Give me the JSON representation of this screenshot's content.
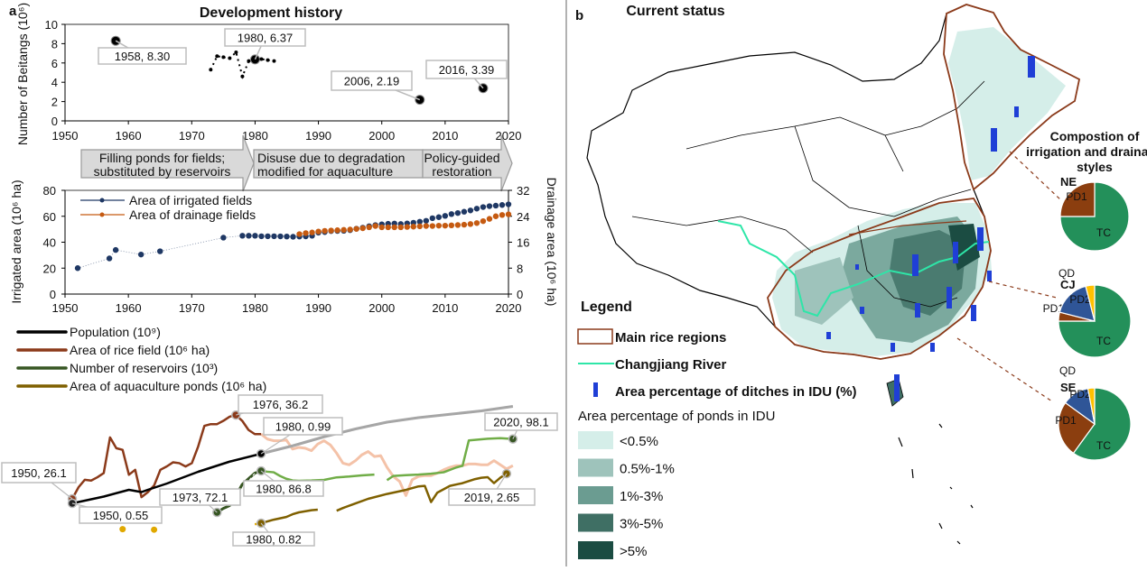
{
  "panel_a": {
    "label": "a",
    "title": "Development history",
    "phases": [
      {
        "line1": "Filling ponds for fields;",
        "line2": "substituted by reservoirs"
      },
      {
        "line1": "Disuse due to degradation",
        "line2": "modified for aquaculture"
      },
      {
        "line1": "Policy-guided",
        "line2": "restoration"
      }
    ]
  },
  "panel_b": {
    "label": "b",
    "title": "Current status",
    "legend": {
      "title": "Legend",
      "rice_regions": "Main rice regions",
      "river": "Changjiang  River",
      "ditches": "Area percentage of ditches in IDU (%)",
      "ponds_title": "Area percentage of ponds in IDU",
      "ponds_classes": [
        {
          "label": "<0.5%",
          "color": "#d5eee9"
        },
        {
          "label": "0.5%-1%",
          "color": "#9ec3bb"
        },
        {
          "label": "1%-3%",
          "color": "#6b9c91"
        },
        {
          "label": "3%-5%",
          "color": "#3f6f64"
        },
        {
          "label": ">5%",
          "color": "#1b4c42"
        }
      ]
    },
    "colors": {
      "rice_region": "#8b3a1a",
      "river": "#2ee6a8",
      "ditch": "#1f3fd6"
    }
  },
  "chart_data": [
    {
      "type": "scatter",
      "title": "Development history",
      "ylabel": "Number of Beitangs (10⁶)",
      "xlim": [
        1950,
        2020
      ],
      "ylim": [
        0,
        10
      ],
      "xticks": [
        "1950",
        "1960",
        "1970",
        "1980",
        "1990",
        "2000",
        "2010",
        "2020"
      ],
      "yticks": [
        "0",
        "2",
        "4",
        "6",
        "8",
        "10"
      ],
      "points": [
        {
          "x": 1958,
          "y": 8.3
        },
        {
          "x": 1973,
          "y": 5.3
        },
        {
          "x": 1974,
          "y": 6.7
        },
        {
          "x": 1975,
          "y": 6.6
        },
        {
          "x": 1976,
          "y": 6.5
        },
        {
          "x": 1977,
          "y": 7.1
        },
        {
          "x": 1978,
          "y": 4.6
        },
        {
          "x": 1979,
          "y": 6.2
        },
        {
          "x": 1980,
          "y": 6.37
        },
        {
          "x": 1981,
          "y": 6.4
        },
        {
          "x": 1982,
          "y": 6.3
        },
        {
          "x": 1983,
          "y": 6.2
        },
        {
          "x": 2006,
          "y": 2.19
        },
        {
          "x": 2016,
          "y": 3.39
        }
      ],
      "annotations": [
        "1958, 8.30",
        "1980, 6.37",
        "2006, 2.19",
        "2016, 3.39"
      ]
    },
    {
      "type": "line",
      "ylabel": "Irrigated area (10⁶ ha)",
      "y2label": "Drainage area (10⁶ ha)",
      "xlim": [
        1950,
        2020
      ],
      "ylim": [
        0,
        80
      ],
      "y2lim": [
        0,
        32
      ],
      "xticks": [
        "1950",
        "1960",
        "1970",
        "1980",
        "1990",
        "2000",
        "2010",
        "2020"
      ],
      "yticks": [
        "0",
        "20",
        "40",
        "60",
        "80"
      ],
      "y2ticks": [
        "0",
        "8",
        "16",
        "24",
        "32"
      ],
      "legend_position": "top-left",
      "series": [
        {
          "name": "Area of irrigated fields",
          "color": "#1f3864",
          "axis": "left",
          "x": [
            1952,
            1957,
            1958,
            1962,
            1965,
            1975,
            1978,
            1979,
            1980,
            1981,
            1982,
            1983,
            1984,
            1985,
            1986,
            1987,
            1988,
            1989,
            1990,
            1991,
            1992,
            1993,
            1994,
            1995,
            1996,
            1997,
            1998,
            1999,
            2000,
            2001,
            2002,
            2003,
            2004,
            2005,
            2006,
            2007,
            2008,
            2009,
            2010,
            2011,
            2012,
            2013,
            2014,
            2015,
            2016,
            2017,
            2018,
            2019,
            2020
          ],
          "y": [
            20,
            27.5,
            34,
            30.5,
            33,
            43.5,
            45,
            45,
            45,
            44.6,
            44.6,
            44.6,
            44.5,
            44.4,
            44.2,
            44.4,
            44.5,
            45,
            47.4,
            47.8,
            48.6,
            48.7,
            48.8,
            49.3,
            50.4,
            51.2,
            52.3,
            53.2,
            53.8,
            54.2,
            54.4,
            54.0,
            54.5,
            55.0,
            55.8,
            56.5,
            58.5,
            59.3,
            60.3,
            61.7,
            62.5,
            63.5,
            64.5,
            65.9,
            67.1,
            67.8,
            68.2,
            68.7,
            69.2
          ]
        },
        {
          "name": "Area of drainage fields",
          "color": "#c55a11",
          "axis": "right",
          "x": [
            1987,
            1988,
            1989,
            1990,
            1991,
            1992,
            1993,
            1994,
            1995,
            1996,
            1997,
            1998,
            1999,
            2000,
            2001,
            2002,
            2003,
            2004,
            2005,
            2006,
            2007,
            2008,
            2009,
            2010,
            2011,
            2012,
            2013,
            2014,
            2015,
            2016,
            2017,
            2018,
            2019,
            2020
          ],
          "y": [
            18.5,
            18.8,
            19.0,
            19.3,
            19.5,
            19.6,
            19.7,
            19.8,
            19.9,
            20.1,
            20.3,
            20.6,
            21.0,
            20.6,
            20.6,
            20.6,
            20.6,
            20.7,
            20.8,
            20.9,
            21.0,
            21.0,
            21.1,
            21.1,
            21.2,
            21.3,
            21.4,
            21.6,
            21.9,
            22.5,
            23.2,
            24.0,
            24.4,
            24.6
          ]
        }
      ]
    },
    {
      "type": "line",
      "xlim": [
        1950,
        2020
      ],
      "legend_position": "top-left",
      "series": [
        {
          "name": "Population (10⁹)",
          "color": "#000000",
          "later_color": "#a6a6a6",
          "x": [
            1950,
            1955,
            1959,
            1961,
            1962,
            1965,
            1970,
            1975,
            1980,
            1985,
            1990,
            1995,
            2000,
            2005,
            2010,
            2015,
            2020
          ],
          "y": [
            0.55,
            0.61,
            0.67,
            0.65,
            0.67,
            0.725,
            0.83,
            0.92,
            0.99,
            1.06,
            1.14,
            1.21,
            1.27,
            1.31,
            1.34,
            1.37,
            1.41
          ]
        },
        {
          "name": "Area of rice field (10⁶ ha)",
          "color": "#8b3a1a",
          "later_color": "#f4c2a8",
          "x": [
            1950,
            1951,
            1952,
            1953,
            1954,
            1955,
            1956,
            1957,
            1958,
            1959,
            1960,
            1961,
            1962,
            1963,
            1964,
            1965,
            1966,
            1967,
            1968,
            1969,
            1970,
            1971,
            1972,
            1973,
            1974,
            1975,
            1976,
            1977,
            1978,
            1979,
            1980,
            1981,
            1982,
            1983,
            1984,
            1985,
            1986,
            1987,
            1988,
            1989,
            1990,
            1991,
            1992,
            1993,
            1994,
            1995,
            1996,
            1997,
            1998,
            1999,
            2000,
            2001,
            2002,
            2003,
            2004,
            2005,
            2006,
            2007,
            2008,
            2009,
            2010,
            2011,
            2012,
            2013,
            2014,
            2015,
            2016,
            2017,
            2018,
            2019,
            2020
          ],
          "y": [
            26.1,
            27.5,
            28.4,
            28.3,
            28.7,
            29.2,
            33.5,
            32.2,
            32.0,
            29.0,
            29.6,
            26.3,
            26.9,
            27.7,
            29.6,
            30.0,
            30.5,
            30.4,
            30.0,
            30.4,
            32.4,
            34.9,
            35.1,
            35.1,
            35.5,
            36.0,
            36.2,
            35.5,
            34.4,
            33.9,
            33.9,
            33.3,
            33.1,
            33.1,
            33.2,
            32.1,
            32.3,
            32.2,
            31.9,
            32.7,
            33.1,
            32.6,
            31.6,
            30.4,
            30.2,
            30.7,
            31.4,
            31.8,
            31.2,
            31.3,
            29.9,
            28.8,
            28.2,
            26.5,
            28.4,
            28.8,
            28.9,
            28.9,
            29.2,
            29.6,
            29.9,
            30.1,
            30.1,
            30.3,
            30.3,
            30.2,
            30.2,
            30.7,
            30.2,
            29.7,
            30.1
          ]
        },
        {
          "name": "Number of reservoirs (10³)",
          "color": "#375623",
          "later_color": "#70ad47",
          "segments": [
            {
              "x": [
                1973,
                1974,
                1975,
                1976,
                1977,
                1978,
                1979,
                1980
              ],
              "y": [
                72.1,
                73.5,
                74.5,
                78,
                82,
                84,
                86,
                86.8
              ]
            },
            {
              "x": [
                1980,
                1981,
                1982,
                1983,
                1984,
                1985,
                1986,
                1988,
                1990,
                1992,
                1994,
                1996,
                1998
              ],
              "y": [
                86.8,
                86.5,
                86.3,
                85,
                84,
                83.4,
                83.3,
                83.4,
                83.6,
                84.5,
                84.8,
                85.2,
                85.5
              ]
            },
            {
              "x": [
                2000,
                2001,
                2003,
                2005,
                2007,
                2009,
                2011,
                2012,
                2013,
                2014,
                2016,
                2018,
                2020
              ],
              "y": [
                83.5,
                85,
                85.3,
                85.5,
                85.8,
                86.3,
                88,
                88.6,
                97.6,
                97.8,
                98.2,
                98.4,
                98.1
              ]
            }
          ]
        },
        {
          "name": "Area of aquaculture ponds (10⁶ ha)",
          "color": "#7f6000",
          "early_color": "#e0a800",
          "early_points": [
            {
              "x": 1958,
              "y": 0.6
            },
            {
              "x": 1963,
              "y": 0.58
            }
          ],
          "segments": [
            {
              "x": [
                1980,
                1982,
                1984,
                1985,
                1986,
                1988,
                1989
              ],
              "y": [
                0.82,
                0.95,
                1.05,
                1.15,
                1.22,
                1.3,
                1.32
              ]
            },
            {
              "x": [
                1992,
                1993,
                1995,
                1997,
                2000,
                2003,
                2005,
                2006,
                2007,
                2008,
                2010,
                2012,
                2014,
                2015,
                2016,
                2017,
                2018,
                2019
              ],
              "y": [
                1.28,
                1.38,
                1.55,
                1.72,
                1.9,
                2.05,
                2.18,
                2.2,
                1.6,
                1.95,
                2.2,
                2.3,
                2.45,
                2.5,
                2.52,
                2.3,
                2.5,
                2.65
              ]
            }
          ]
        }
      ],
      "annotations": [
        "1950, 26.1",
        "1950, 0.55",
        "1976, 36.2",
        "1980, 0.99",
        "1973, 72.1",
        "1980, 86.8",
        "2020, 98.1",
        "2019, 2.65",
        "1980, 0.82"
      ]
    },
    {
      "type": "pie",
      "title": "Compostion of irrigation and drainage styles",
      "colors": {
        "TC": "#23905a",
        "PD1": "#8b3e0f",
        "PD2": "#2f5597",
        "QD": "#ffc000"
      },
      "pies": [
        {
          "region": "NE",
          "slices": [
            {
              "label": "TC",
              "value": 75
            },
            {
              "label": "PD1",
              "value": 25
            }
          ]
        },
        {
          "region": "CJ",
          "slices": [
            {
              "label": "TC",
              "value": 75
            },
            {
              "label": "PD1",
              "value": 4
            },
            {
              "label": "PD2",
              "value": 17
            },
            {
              "label": "QD",
              "value": 4
            }
          ]
        },
        {
          "region": "SE",
          "slices": [
            {
              "label": "TC",
              "value": 60
            },
            {
              "label": "PD1",
              "value": 25
            },
            {
              "label": "PD2",
              "value": 12
            },
            {
              "label": "QD",
              "value": 3
            }
          ]
        }
      ]
    }
  ]
}
